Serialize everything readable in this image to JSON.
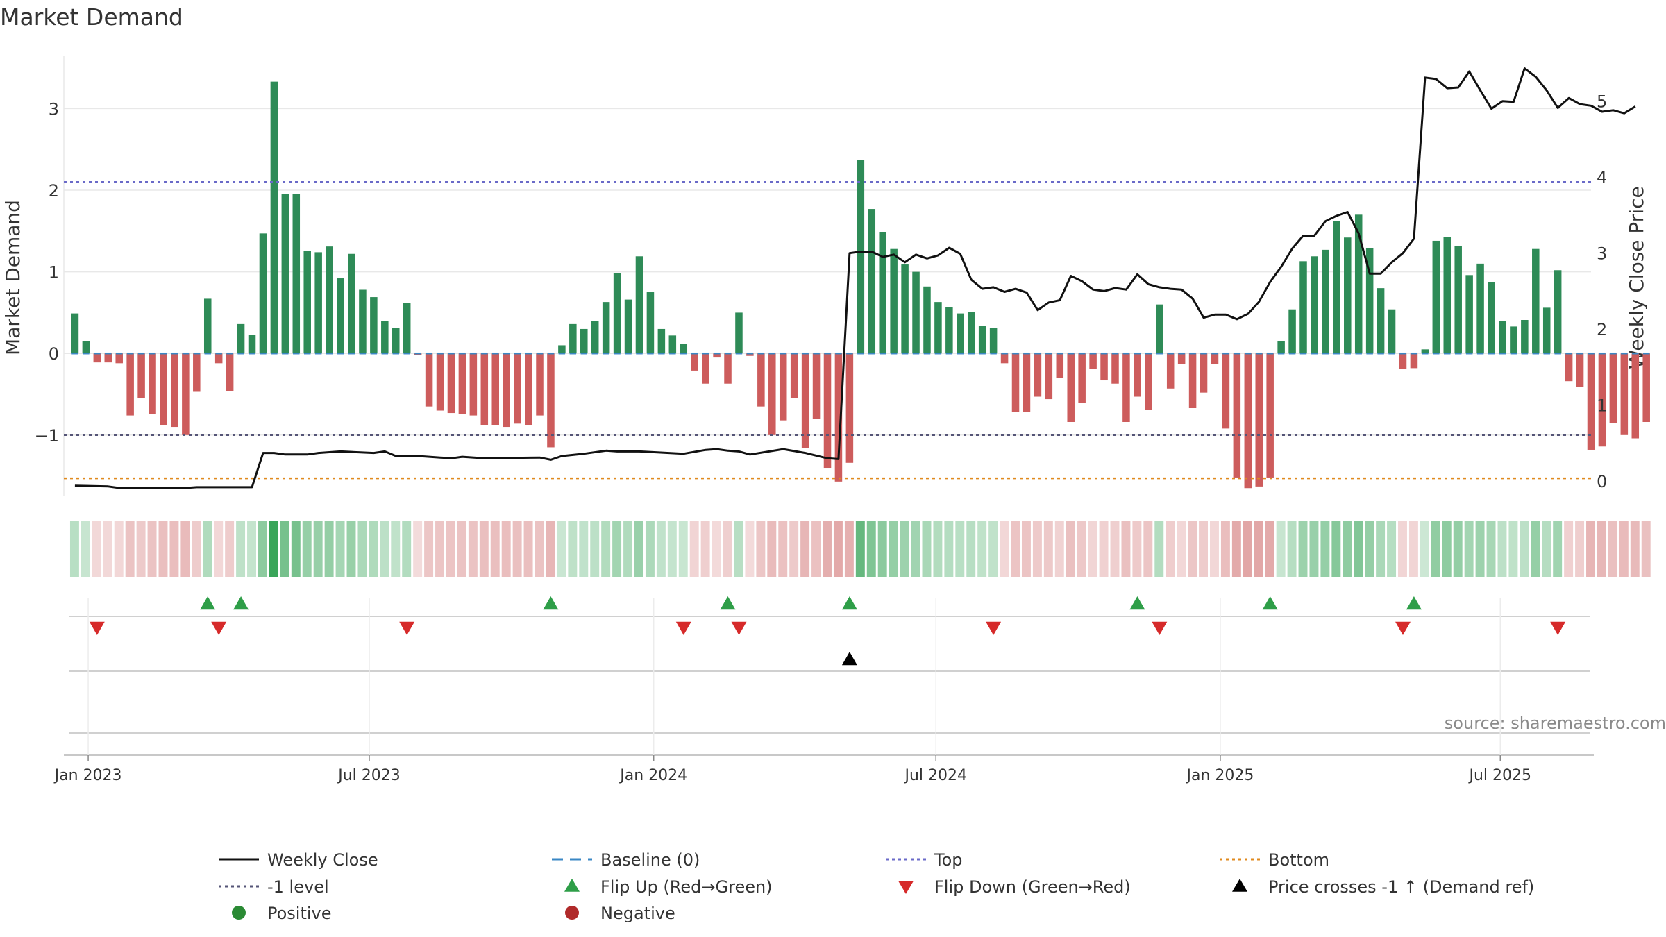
{
  "chart_data": {
    "type": "bar",
    "title": "Market Demand",
    "ylabel_left": "Market Demand",
    "ylabel_right": "Weekly Close Price",
    "ylim_left": [
      -1.75,
      3.65
    ],
    "ylim_right": [
      -0.2,
      5.6
    ],
    "left_ticks": [
      -1,
      0,
      1,
      2,
      3
    ],
    "left_tick_labels": [
      "−1",
      "0",
      "1",
      "2",
      "3"
    ],
    "right_ticks": [
      0,
      1,
      2,
      3,
      4,
      5
    ],
    "right_tick_labels": [
      "0",
      "1",
      "2",
      "3",
      "4",
      "5"
    ],
    "x_week_range": [
      -1,
      137
    ],
    "x_ticks": [
      {
        "label": "Jan 2023",
        "week": 1.2
      },
      {
        "label": "Jul 2023",
        "week": 26.6
      },
      {
        "label": "Jan 2024",
        "week": 52.3
      },
      {
        "label": "Jul 2024",
        "week": 77.8
      },
      {
        "label": "Jan 2025",
        "week": 103.5
      },
      {
        "label": "Jul 2025",
        "week": 128.8
      }
    ],
    "reference_levels": {
      "top": 2.1,
      "minus_one": -1.0,
      "bottom": -1.53,
      "baseline": 0
    },
    "demand": [
      0.49,
      0.15,
      -0.11,
      -0.11,
      -0.12,
      -0.76,
      -0.55,
      -0.74,
      -0.88,
      -0.9,
      -1.0,
      -0.47,
      0.67,
      -0.12,
      -0.46,
      0.36,
      0.23,
      1.47,
      3.33,
      1.95,
      1.95,
      1.26,
      1.24,
      1.31,
      0.92,
      1.22,
      0.78,
      0.69,
      0.4,
      0.31,
      0.62,
      -0.02,
      -0.65,
      -0.7,
      -0.73,
      -0.74,
      -0.76,
      -0.88,
      -0.88,
      -0.9,
      -0.86,
      -0.88,
      -0.76,
      -1.15,
      0.1,
      0.36,
      0.3,
      0.4,
      0.63,
      0.98,
      0.66,
      1.19,
      0.75,
      0.3,
      0.22,
      0.12,
      -0.21,
      -0.37,
      -0.05,
      -0.37,
      0.5,
      -0.03,
      -0.65,
      -1.0,
      -0.82,
      -0.55,
      -1.16,
      -0.8,
      -1.41,
      -1.57,
      -1.34,
      2.37,
      1.77,
      1.49,
      1.28,
      1.09,
      1.0,
      0.82,
      0.63,
      0.57,
      0.49,
      0.51,
      0.34,
      0.31,
      -0.12,
      -0.72,
      -0.72,
      -0.53,
      -0.56,
      -0.3,
      -0.84,
      -0.61,
      -0.19,
      -0.33,
      -0.37,
      -0.84,
      -0.53,
      -0.69,
      0.6,
      -0.43,
      -0.13,
      -0.67,
      -0.48,
      -0.13,
      -0.92,
      -1.52,
      -1.65,
      -1.63,
      -1.52,
      0.15,
      0.54,
      1.13,
      1.19,
      1.27,
      1.62,
      1.42,
      1.7,
      1.29,
      0.8,
      0.54,
      -0.19,
      -0.18,
      0.05,
      1.38,
      1.43,
      1.32,
      0.96,
      1.1,
      0.87,
      0.4,
      0.33,
      0.41,
      1.28,
      0.56,
      1.02,
      -0.34,
      -0.41,
      -1.18,
      -1.14,
      -0.85,
      -1.0,
      -1.04,
      -0.84
    ],
    "weekly_close": [
      [
        0,
        -0.06
      ],
      [
        3,
        -0.07
      ],
      [
        4,
        -0.09
      ],
      [
        10,
        -0.09
      ],
      [
        11,
        -0.08
      ],
      [
        16,
        -0.08
      ],
      [
        17,
        0.37
      ],
      [
        18,
        0.37
      ],
      [
        19,
        0.35
      ],
      [
        21,
        0.35
      ],
      [
        22,
        0.37
      ],
      [
        24,
        0.39
      ],
      [
        27,
        0.37
      ],
      [
        28,
        0.39
      ],
      [
        29,
        0.33
      ],
      [
        31,
        0.33
      ],
      [
        34,
        0.3
      ],
      [
        35,
        0.32
      ],
      [
        37,
        0.3
      ],
      [
        42,
        0.31
      ],
      [
        43,
        0.28
      ],
      [
        44,
        0.33
      ],
      [
        46,
        0.36
      ],
      [
        48,
        0.4
      ],
      [
        49,
        0.39
      ],
      [
        51,
        0.39
      ],
      [
        55,
        0.36
      ],
      [
        57,
        0.41
      ],
      [
        58,
        0.42
      ],
      [
        59,
        0.4
      ],
      [
        60,
        0.39
      ],
      [
        61,
        0.35
      ],
      [
        64,
        0.42
      ],
      [
        66,
        0.37
      ],
      [
        68,
        0.3
      ],
      [
        69,
        0.29
      ],
      [
        70,
        3.0
      ],
      [
        71,
        3.02
      ],
      [
        72,
        3.02
      ],
      [
        73,
        2.95
      ],
      [
        74,
        2.98
      ],
      [
        75,
        2.88
      ],
      [
        76,
        2.98
      ],
      [
        77,
        2.93
      ],
      [
        78,
        2.97
      ],
      [
        79,
        3.07
      ],
      [
        80,
        2.99
      ],
      [
        81,
        2.65
      ],
      [
        82,
        2.53
      ],
      [
        83,
        2.55
      ],
      [
        84,
        2.49
      ],
      [
        85,
        2.53
      ],
      [
        86,
        2.48
      ],
      [
        87,
        2.25
      ],
      [
        88,
        2.35
      ],
      [
        89,
        2.38
      ],
      [
        90,
        2.7
      ],
      [
        91,
        2.63
      ],
      [
        92,
        2.52
      ],
      [
        93,
        2.5
      ],
      [
        94,
        2.54
      ],
      [
        95,
        2.52
      ],
      [
        96,
        2.72
      ],
      [
        97,
        2.59
      ],
      [
        98,
        2.55
      ],
      [
        99,
        2.53
      ],
      [
        100,
        2.52
      ],
      [
        101,
        2.4
      ],
      [
        102,
        2.15
      ],
      [
        103,
        2.19
      ],
      [
        104,
        2.19
      ],
      [
        105,
        2.13
      ],
      [
        106,
        2.2
      ],
      [
        107,
        2.36
      ],
      [
        108,
        2.62
      ],
      [
        109,
        2.82
      ],
      [
        110,
        3.06
      ],
      [
        111,
        3.23
      ],
      [
        112,
        3.23
      ],
      [
        113,
        3.42
      ],
      [
        114,
        3.49
      ],
      [
        115,
        3.54
      ],
      [
        116,
        3.26
      ],
      [
        117,
        2.73
      ],
      [
        118,
        2.73
      ],
      [
        119,
        2.88
      ],
      [
        120,
        3.0
      ],
      [
        121,
        3.19
      ],
      [
        122,
        5.31
      ],
      [
        123,
        5.29
      ],
      [
        124,
        5.17
      ],
      [
        125,
        5.18
      ],
      [
        126,
        5.39
      ],
      [
        127,
        5.14
      ],
      [
        128,
        4.9
      ],
      [
        129,
        5.0
      ],
      [
        130,
        4.99
      ],
      [
        131,
        5.43
      ],
      [
        132,
        5.32
      ],
      [
        133,
        5.14
      ],
      [
        134,
        4.91
      ],
      [
        135,
        5.04
      ],
      [
        136,
        4.96
      ],
      [
        137,
        4.94
      ],
      [
        138,
        4.86
      ],
      [
        139,
        4.88
      ],
      [
        140,
        4.84
      ],
      [
        141,
        4.93
      ]
    ],
    "flip_up_weeks": [
      12,
      15,
      43,
      59,
      70,
      96,
      108,
      121
    ],
    "flip_down_weeks": [
      2,
      13,
      30,
      55,
      60,
      83,
      98,
      120,
      134
    ],
    "price_cross_weeks": [
      70
    ],
    "annotation": "source: sharemaestro.com",
    "legend": [
      {
        "label": "Weekly Close",
        "marker": "solid-line",
        "color": "#111111"
      },
      {
        "label": "Baseline (0)",
        "marker": "dashed-line",
        "color": "#3a87c4"
      },
      {
        "label": "Top",
        "marker": "dotted-line",
        "color": "#6a6ac8"
      },
      {
        "label": "Bottom",
        "marker": "dotted-line",
        "color": "#e08a1e"
      },
      {
        "label": "-1 level",
        "marker": "dotted-line",
        "color": "#555577"
      },
      {
        "label": "Flip Up (Red→Green)",
        "marker": "triangle-up",
        "color": "#2e9e48"
      },
      {
        "label": "Flip Down (Green→Red)",
        "marker": "triangle-down",
        "color": "#d62a2a"
      },
      {
        "label": "Price crosses -1 ↑ (Demand ref)",
        "marker": "triangle-up",
        "color": "#000000"
      },
      {
        "label": "Positive",
        "marker": "circle",
        "color": "#2a8a34"
      },
      {
        "label": "Negative",
        "marker": "circle",
        "color": "#b02a2a"
      }
    ],
    "legend_placement": "bottom"
  },
  "colors": {
    "positive_bar": "#2e8b57",
    "negative_bar": "#cd5c5c",
    "price_line": "#111111",
    "top_line": "#6a6ac8",
    "minus_one_line": "#555577",
    "bottom_line": "#e08a1e",
    "baseline": "#3a87c4",
    "grid": "#e8e8e8",
    "axis_text": "#333333",
    "annotation_text": "#8a8a8a"
  }
}
